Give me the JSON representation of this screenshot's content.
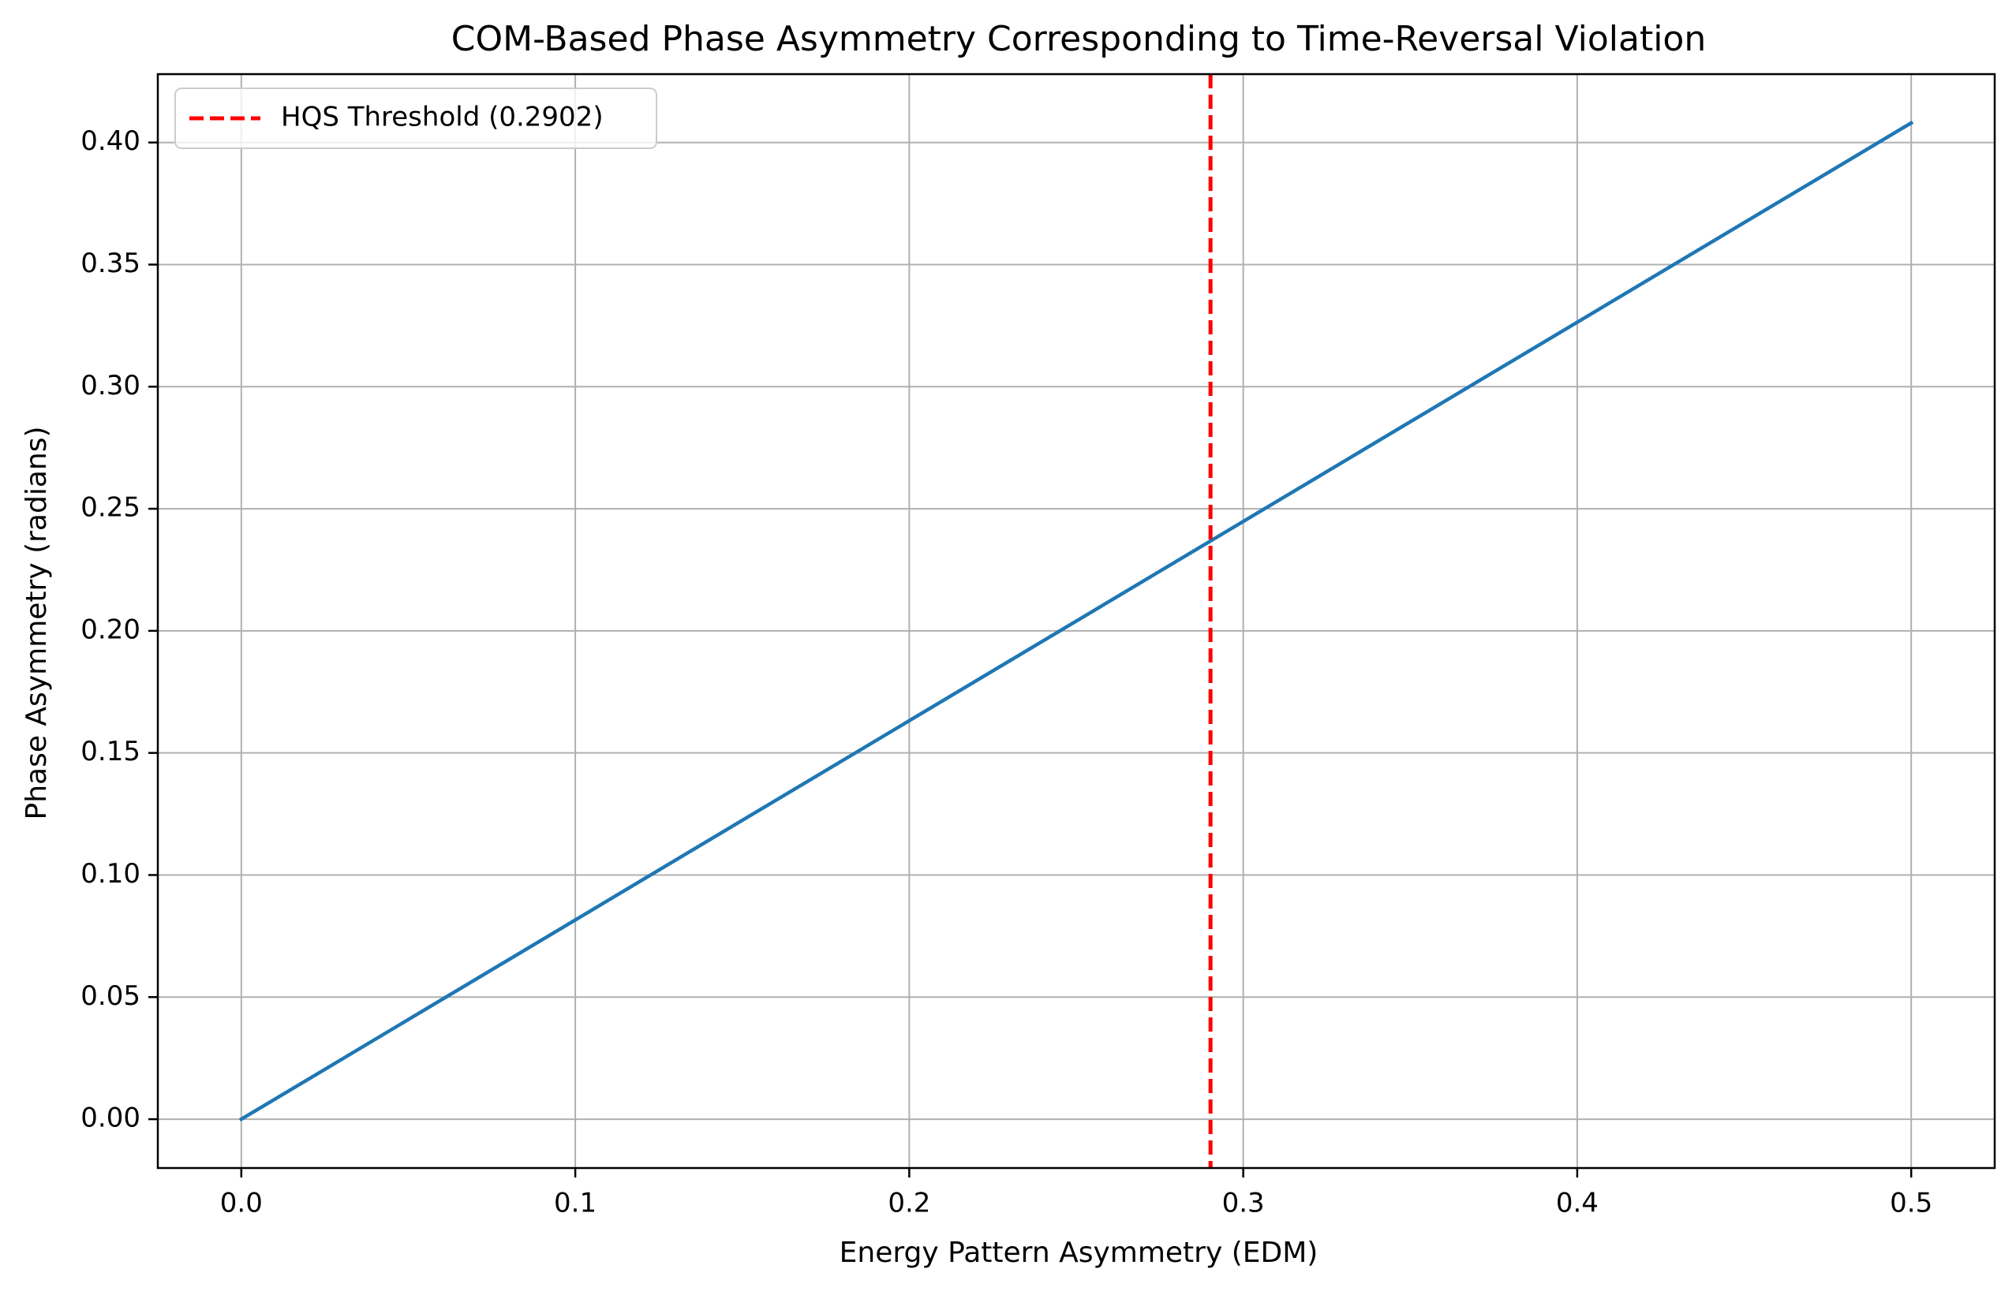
{
  "chart_data": {
    "type": "line",
    "title": "COM-Based Phase Asymmetry Corresponding to Time-Reversal Violation",
    "xlabel": "Energy Pattern Asymmetry (EDM)",
    "ylabel": "Phase Asymmetry (radians)",
    "xlim": [
      -0.025,
      0.525
    ],
    "ylim": [
      -0.02,
      0.428
    ],
    "xticks": [
      0.0,
      0.1,
      0.2,
      0.3,
      0.4,
      0.5
    ],
    "xtick_labels": [
      "0.0",
      "0.1",
      "0.2",
      "0.3",
      "0.4",
      "0.5"
    ],
    "yticks": [
      0.0,
      0.05,
      0.1,
      0.15,
      0.2,
      0.25,
      0.3,
      0.35,
      0.4
    ],
    "ytick_labels": [
      "0.00",
      "0.05",
      "0.10",
      "0.15",
      "0.20",
      "0.25",
      "0.30",
      "0.35",
      "0.40"
    ],
    "grid": true,
    "legend_position": "top-left",
    "series": [
      {
        "kind": "line",
        "color": "#1f77b4",
        "x": [
          0.0,
          0.5
        ],
        "y": [
          0.0,
          0.408
        ]
      }
    ],
    "reference_lines": [
      {
        "orientation": "vertical",
        "x": 0.2902,
        "label": "HQS Threshold (0.2902)",
        "color": "#ff0000",
        "style": "dashed"
      }
    ]
  }
}
